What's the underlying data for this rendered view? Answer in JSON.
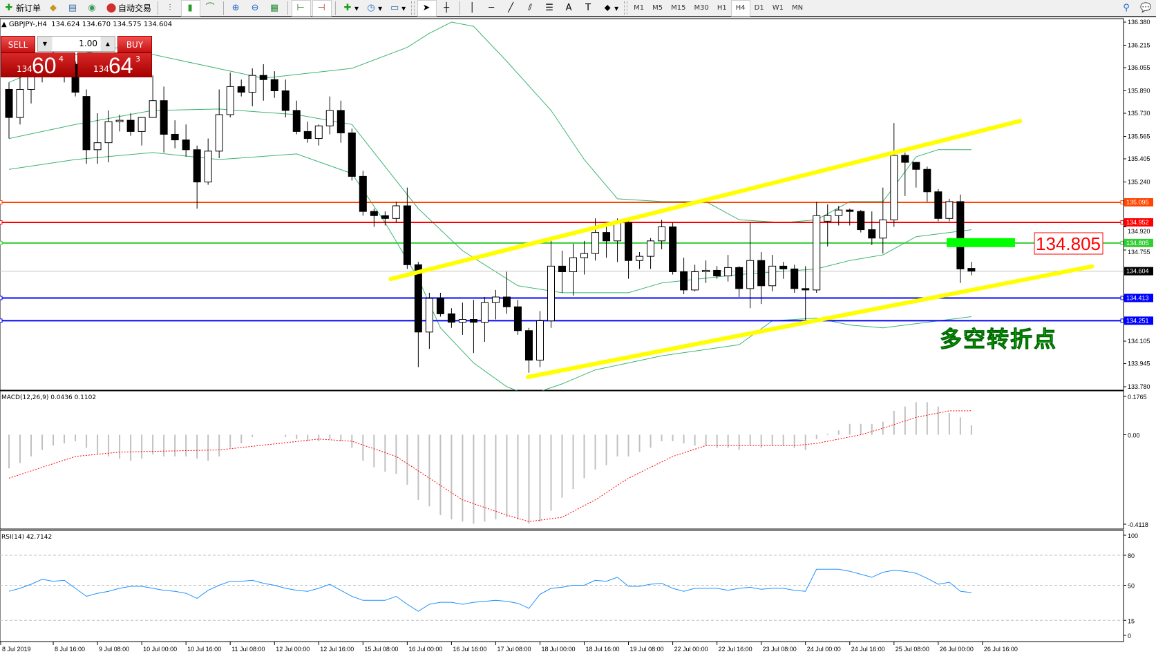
{
  "toolbar": {
    "new_order": "新订单",
    "auto_trading": "自动交易",
    "icons": [
      "new-order-icon",
      "market-watch-icon",
      "navigator-icon",
      "signals-icon",
      "auto-trading-icon",
      "bar-chart-icon",
      "candlestick-icon",
      "line-chart-icon",
      "zoom-in-icon",
      "zoom-out-icon",
      "tile-windows-icon",
      "chart-shift-icon",
      "autoscroll-icon",
      "indicators-icon",
      "periods-icon",
      "templates-icon",
      "cursor-icon",
      "crosshair-icon",
      "vertical-line-icon",
      "horizontal-line-icon",
      "trendline-icon",
      "equidistant-channel-icon",
      "fibonacci-icon",
      "text-icon",
      "text-label-icon",
      "arrows-icon",
      "search-icon",
      "chat-icon"
    ],
    "timeframes": [
      "M1",
      "M5",
      "M15",
      "M30",
      "H1",
      "H4",
      "D1",
      "W1",
      "MN"
    ],
    "active_timeframe": "H4"
  },
  "chart_header": {
    "symbol": "▲ GBPJPY-,H4",
    "ohlc": "134.624 134.670 134.575 134.604"
  },
  "trade_panel": {
    "sell_label": "SELL",
    "buy_label": "BUY",
    "lot": "1.00",
    "sell_price": {
      "small": "134",
      "big": "60",
      "pip": "4"
    },
    "buy_price": {
      "small": "134",
      "big": "64",
      "pip": "3"
    }
  },
  "chart_data": [
    {
      "type": "candlestick",
      "symbol": "GBPJPY-",
      "timeframe": "H4",
      "ylim": [
        133.78,
        136.38
      ],
      "y_ticks": [
        "136.380",
        "136.215",
        "136.055",
        "135.890",
        "135.730",
        "135.565",
        "135.405",
        "135.240",
        "134.920",
        "134.755",
        "134.105",
        "133.945",
        "133.780"
      ],
      "x_tick_labels": [
        "8 Jul 2019",
        "8 Jul 16:00",
        "9 Jul 08:00",
        "10 Jul 00:00",
        "10 Jul 16:00",
        "11 Jul 08:00",
        "12 Jul 00:00",
        "12 Jul 16:00",
        "15 Jul 08:00",
        "16 Jul 00:00",
        "16 Jul 16:00",
        "17 Jul 08:00",
        "18 Jul 00:00",
        "18 Jul 16:00",
        "19 Jul 08:00",
        "22 Jul 00:00",
        "22 Jul 16:00",
        "23 Jul 08:00",
        "24 Jul 00:00",
        "24 Jul 16:00",
        "25 Jul 08:00",
        "26 Jul 00:00",
        "26 Jul 16:00"
      ],
      "ohlc": [
        [
          135.9,
          135.95,
          135.55,
          135.7
        ],
        [
          135.7,
          136.1,
          135.65,
          135.9
        ],
        [
          135.9,
          136.07,
          135.8,
          136.02
        ],
        [
          136.02,
          136.15,
          135.95,
          136.1
        ],
        [
          136.1,
          136.2,
          136.0,
          136.05
        ],
        [
          136.05,
          136.15,
          135.95,
          136.08
        ],
        [
          136.08,
          136.1,
          135.85,
          135.88
        ],
        [
          135.85,
          135.9,
          135.37,
          135.47
        ],
        [
          135.47,
          135.73,
          135.37,
          135.52
        ],
        [
          135.52,
          135.75,
          135.38,
          135.67
        ],
        [
          135.67,
          135.72,
          135.6,
          135.68
        ],
        [
          135.68,
          135.73,
          135.57,
          135.6
        ],
        [
          135.6,
          135.7,
          135.5,
          135.7
        ],
        [
          135.7,
          136.0,
          135.7,
          135.82
        ],
        [
          135.82,
          135.92,
          135.45,
          135.58
        ],
        [
          135.58,
          135.68,
          135.48,
          135.54
        ],
        [
          135.54,
          135.65,
          135.42,
          135.47
        ],
        [
          135.47,
          135.5,
          135.05,
          135.24
        ],
        [
          135.24,
          135.55,
          135.22,
          135.46
        ],
        [
          135.46,
          135.9,
          135.41,
          135.72
        ],
        [
          135.72,
          136.02,
          135.7,
          135.92
        ],
        [
          135.92,
          135.97,
          135.85,
          135.88
        ],
        [
          135.88,
          136.05,
          135.78,
          136.0
        ],
        [
          136.0,
          136.08,
          135.82,
          135.97
        ],
        [
          135.97,
          136.03,
          135.84,
          135.89
        ],
        [
          135.89,
          135.97,
          135.7,
          135.75
        ],
        [
          135.75,
          135.82,
          135.58,
          135.6
        ],
        [
          135.6,
          135.67,
          135.52,
          135.55
        ],
        [
          135.55,
          135.65,
          135.5,
          135.64
        ],
        [
          135.64,
          135.85,
          135.58,
          135.75
        ],
        [
          135.75,
          135.82,
          135.52,
          135.59
        ],
        [
          135.59,
          135.62,
          135.25,
          135.28
        ],
        [
          135.28,
          135.32,
          135.0,
          135.03
        ],
        [
          135.03,
          135.05,
          134.92,
          135.0
        ],
        [
          135.0,
          135.03,
          134.93,
          134.98
        ],
        [
          134.98,
          135.1,
          134.95,
          135.07
        ],
        [
          135.07,
          135.2,
          134.62,
          134.65
        ],
        [
          134.65,
          134.67,
          133.92,
          134.17
        ],
        [
          134.17,
          134.45,
          134.05,
          134.41
        ],
        [
          134.41,
          134.45,
          134.28,
          134.3
        ],
        [
          134.3,
          134.34,
          134.2,
          134.24
        ],
        [
          134.24,
          134.38,
          134.15,
          134.26
        ],
        [
          134.26,
          134.4,
          134.02,
          134.24
        ],
        [
          134.24,
          134.42,
          134.1,
          134.38
        ],
        [
          134.38,
          134.47,
          134.26,
          134.42
        ],
        [
          134.42,
          134.6,
          134.3,
          134.35
        ],
        [
          134.35,
          134.4,
          134.15,
          134.18
        ],
        [
          134.18,
          134.2,
          133.88,
          133.97
        ],
        [
          133.97,
          134.32,
          133.92,
          134.25
        ],
        [
          134.25,
          134.85,
          134.2,
          134.64
        ],
        [
          134.64,
          134.75,
          134.45,
          134.6
        ],
        [
          134.6,
          134.8,
          134.43,
          134.7
        ],
        [
          134.7,
          134.82,
          134.58,
          134.73
        ],
        [
          134.73,
          134.98,
          134.68,
          134.88
        ],
        [
          134.88,
          134.95,
          134.7,
          134.82
        ],
        [
          134.82,
          134.98,
          134.67,
          134.95
        ],
        [
          134.95,
          134.98,
          134.55,
          134.68
        ],
        [
          134.68,
          134.74,
          134.62,
          134.71
        ],
        [
          134.71,
          134.84,
          134.62,
          134.82
        ],
        [
          134.82,
          134.97,
          134.76,
          134.92
        ],
        [
          134.92,
          134.95,
          134.58,
          134.6
        ],
        [
          134.6,
          134.7,
          134.44,
          134.47
        ],
        [
          134.47,
          134.65,
          134.46,
          134.6
        ],
        [
          134.6,
          134.68,
          134.52,
          134.61
        ],
        [
          134.61,
          134.64,
          134.55,
          134.57
        ],
        [
          134.57,
          134.72,
          134.53,
          134.63
        ],
        [
          134.63,
          134.64,
          134.42,
          134.48
        ],
        [
          134.48,
          134.95,
          134.34,
          134.68
        ],
        [
          134.68,
          134.74,
          134.37,
          134.5
        ],
        [
          134.5,
          134.72,
          134.46,
          134.64
        ],
        [
          134.64,
          134.67,
          134.55,
          134.62
        ],
        [
          134.62,
          134.65,
          134.45,
          134.48
        ],
        [
          134.48,
          134.64,
          134.25,
          134.47
        ],
        [
          134.47,
          135.1,
          134.45,
          135.0
        ],
        [
          134.96,
          135.08,
          134.78,
          135.0
        ],
        [
          135.0,
          135.07,
          134.93,
          135.04
        ],
        [
          135.04,
          135.05,
          134.93,
          135.03
        ],
        [
          135.03,
          135.04,
          134.88,
          134.9
        ],
        [
          134.9,
          135.03,
          134.79,
          134.84
        ],
        [
          134.84,
          135.2,
          134.73,
          134.97
        ],
        [
          134.97,
          135.66,
          134.92,
          135.43
        ],
        [
          135.43,
          135.45,
          135.14,
          135.38
        ],
        [
          135.38,
          135.38,
          135.2,
          135.33
        ],
        [
          135.33,
          135.35,
          135.1,
          135.17
        ],
        [
          135.17,
          135.19,
          134.96,
          134.98
        ],
        [
          134.98,
          135.12,
          134.96,
          135.1
        ],
        [
          135.1,
          135.15,
          134.52,
          134.62
        ],
        [
          134.624,
          134.67,
          134.575,
          134.604
        ]
      ],
      "bollinger": {
        "upper": [
          [
            0,
            135.95
          ],
          [
            6,
            136.15
          ],
          [
            10,
            136.2
          ],
          [
            23,
            135.98
          ],
          [
            31,
            136.05
          ],
          [
            36,
            136.2
          ],
          [
            38,
            136.3
          ],
          [
            40,
            136.38
          ],
          [
            42,
            136.35
          ],
          [
            45,
            136.1
          ],
          [
            49,
            135.75
          ],
          [
            52,
            135.4
          ],
          [
            55,
            135.12
          ],
          [
            59,
            135.1
          ],
          [
            63,
            135.1
          ],
          [
            66,
            134.97
          ],
          [
            70,
            134.95
          ],
          [
            73,
            134.97
          ],
          [
            76,
            135.1
          ],
          [
            79,
            135.1
          ],
          [
            82,
            135.42
          ],
          [
            84,
            135.47
          ],
          [
            87,
            135.47
          ]
        ],
        "middle": [
          [
            0,
            135.55
          ],
          [
            6,
            135.65
          ],
          [
            13,
            135.75
          ],
          [
            19,
            135.76
          ],
          [
            26,
            135.72
          ],
          [
            31,
            135.65
          ],
          [
            34,
            135.35
          ],
          [
            37,
            135.05
          ],
          [
            41,
            134.75
          ],
          [
            46,
            134.5
          ],
          [
            50,
            134.45
          ],
          [
            56,
            134.45
          ],
          [
            59,
            134.52
          ],
          [
            66,
            134.58
          ],
          [
            73,
            134.62
          ],
          [
            76,
            134.68
          ],
          [
            79,
            134.72
          ],
          [
            82,
            134.85
          ],
          [
            87,
            134.9
          ]
        ],
        "lower": [
          [
            0,
            135.33
          ],
          [
            6,
            135.4
          ],
          [
            13,
            135.45
          ],
          [
            19,
            135.4
          ],
          [
            26,
            135.44
          ],
          [
            31,
            135.3
          ],
          [
            34,
            134.95
          ],
          [
            37,
            134.55
          ],
          [
            39,
            134.2
          ],
          [
            42,
            133.95
          ],
          [
            45,
            133.78
          ],
          [
            47,
            133.72
          ],
          [
            50,
            133.8
          ],
          [
            53,
            133.9
          ],
          [
            56,
            133.95
          ],
          [
            59,
            134.0
          ],
          [
            66,
            134.08
          ],
          [
            69,
            134.25
          ],
          [
            73,
            134.27
          ],
          [
            76,
            134.22
          ],
          [
            79,
            134.2
          ],
          [
            84,
            134.25
          ],
          [
            87,
            134.28
          ]
        ]
      },
      "horizontal_lines": [
        {
          "price": "135.095",
          "color": "#ff4500"
        },
        {
          "price": "134.952",
          "color": "#ff0000"
        },
        {
          "price": "134.805",
          "color": "#32cd32"
        },
        {
          "price": "134.604",
          "color": "#000000",
          "line_color": "#c0c0c0"
        },
        {
          "price": "134.413",
          "color": "#0000ff"
        },
        {
          "price": "134.251",
          "color": "#0000ff"
        }
      ],
      "trendlines": [
        {
          "from": [
            34.5,
            134.548
          ],
          "to": [
            91.4,
            135.675
          ],
          "color": "#ffff00"
        },
        {
          "from": [
            46.9,
            133.849
          ],
          "to": [
            97.9,
            134.638
          ],
          "color": "#ffff00"
        }
      ],
      "annotations": {
        "price_label": "134.805",
        "zone_price": 134.805,
        "zone_color": "#00ff00",
        "text": "多空转折点"
      },
      "colors": {
        "bull_fill": "#ffffff",
        "bear_fill": "#000000",
        "bands": "#3cb371"
      }
    },
    {
      "type": "bar+line",
      "title": "MACD(12,26,9) 0.0436 0.1102",
      "ylim": [
        -0.4118,
        0.1765
      ],
      "y_ticks": [
        "0.1765",
        "0.00",
        "-0.4118"
      ],
      "histogram": [
        -0.155,
        -0.13,
        -0.1,
        -0.07,
        -0.05,
        -0.04,
        -0.03,
        -0.06,
        -0.09,
        -0.1,
        -0.11,
        -0.12,
        -0.11,
        -0.09,
        -0.1,
        -0.1,
        -0.1,
        -0.11,
        -0.12,
        -0.1,
        -0.06,
        -0.04,
        -0.01,
        0.0,
        0.0,
        -0.01,
        -0.02,
        -0.03,
        -0.03,
        -0.02,
        -0.03,
        -0.06,
        -0.12,
        -0.15,
        -0.17,
        -0.18,
        -0.23,
        -0.3,
        -0.33,
        -0.37,
        -0.39,
        -0.4,
        -0.41,
        -0.4,
        -0.39,
        -0.38,
        -0.39,
        -0.41,
        -0.4,
        -0.35,
        -0.29,
        -0.25,
        -0.2,
        -0.16,
        -0.14,
        -0.1,
        -0.1,
        -0.08,
        -0.06,
        -0.03,
        -0.03,
        -0.04,
        -0.05,
        -0.05,
        -0.06,
        -0.06,
        -0.07,
        -0.05,
        -0.06,
        -0.05,
        -0.05,
        -0.06,
        -0.07,
        -0.02,
        0.005,
        0.02,
        0.05,
        0.05,
        0.05,
        0.06,
        0.11,
        0.13,
        0.15,
        0.15,
        0.13,
        0.1,
        0.08,
        0.0436
      ],
      "signal": [
        [
          0,
          -0.2
        ],
        [
          6,
          -0.1
        ],
        [
          10,
          -0.08
        ],
        [
          19,
          -0.07
        ],
        [
          28,
          -0.02
        ],
        [
          31,
          -0.03
        ],
        [
          35,
          -0.1
        ],
        [
          38,
          -0.2
        ],
        [
          41,
          -0.3
        ],
        [
          45,
          -0.37
        ],
        [
          47,
          -0.4
        ],
        [
          50,
          -0.38
        ],
        [
          53,
          -0.3
        ],
        [
          56,
          -0.2
        ],
        [
          60,
          -0.1
        ],
        [
          63,
          -0.05
        ],
        [
          66,
          -0.05
        ],
        [
          71,
          -0.05
        ],
        [
          73,
          -0.04
        ],
        [
          77,
          0.0
        ],
        [
          79,
          0.03
        ],
        [
          82,
          0.08
        ],
        [
          85,
          0.11
        ],
        [
          87,
          0.1102
        ]
      ],
      "colors": {
        "histogram": "#c0c0c0",
        "signal": "#ff0000"
      }
    },
    {
      "type": "line",
      "title": "RSI(14) 42.7142",
      "ylim": [
        0,
        100
      ],
      "y_ticks": [
        "100",
        "80",
        "50",
        "15",
        "0"
      ],
      "levels": [
        80,
        50,
        15
      ],
      "values": [
        44,
        47,
        51,
        56,
        54,
        55,
        47,
        39,
        42,
        44,
        47,
        49,
        49,
        47,
        45,
        44,
        42,
        37,
        45,
        50,
        54,
        54,
        55,
        52,
        50,
        47,
        45,
        44,
        47,
        51,
        45,
        39,
        35,
        35,
        35,
        39,
        31,
        24,
        31,
        33,
        33,
        31,
        33,
        34,
        35,
        34,
        32,
        27,
        41,
        47,
        48,
        50,
        50,
        55,
        54,
        58,
        49,
        49,
        51,
        52,
        47,
        44,
        47,
        47,
        47,
        45,
        47,
        48,
        46,
        47,
        47,
        45,
        44,
        66,
        66,
        66,
        64,
        61,
        58,
        63,
        65,
        64,
        62,
        57,
        51,
        53,
        44,
        42.7142
      ],
      "colors": {
        "line": "#1e90ff"
      }
    }
  ]
}
